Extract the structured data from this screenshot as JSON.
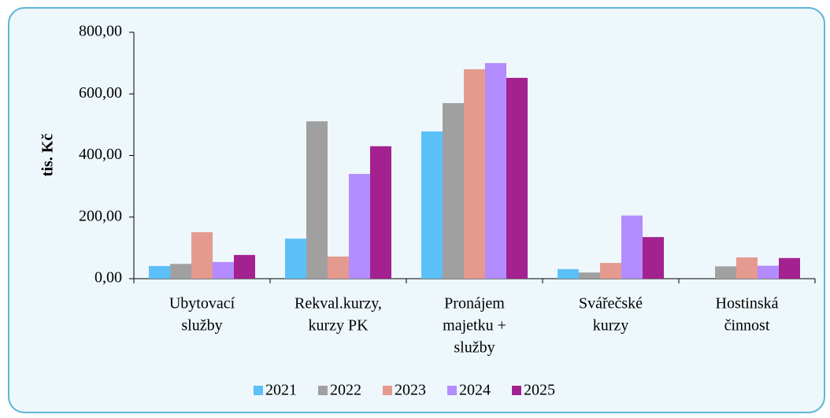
{
  "chart_data": {
    "type": "bar",
    "y_label": "tis. Kč",
    "categories": [
      [
        "Ubytovací",
        "služby"
      ],
      [
        "Rekval.kurzy,",
        "kurzy PK"
      ],
      [
        "Pronájem",
        "majetku +",
        "služby"
      ],
      [
        "Svářečské",
        "kurzy"
      ],
      [
        "Hostinská",
        "činnost"
      ]
    ],
    "series": [
      {
        "name": "2021",
        "color": "#5bc0f8",
        "values": [
          41,
          130,
          478,
          31,
          0
        ]
      },
      {
        "name": "2022",
        "color": "#a0a0a0",
        "values": [
          48,
          511,
          570,
          20,
          40
        ]
      },
      {
        "name": "2023",
        "color": "#e59a90",
        "values": [
          151,
          72,
          680,
          51,
          69
        ]
      },
      {
        "name": "2024",
        "color": "#b38cff",
        "values": [
          54,
          340,
          700,
          205,
          42
        ]
      },
      {
        "name": "2025",
        "color": "#a3228f",
        "values": [
          77,
          430,
          652,
          135,
          67
        ]
      }
    ],
    "ylim": [
      0,
      800
    ],
    "yticks": [
      {
        "value": 0,
        "label": "0,00"
      },
      {
        "value": 200,
        "label": "200,00"
      },
      {
        "value": 400,
        "label": "400,00"
      },
      {
        "value": 600,
        "label": "600,00"
      },
      {
        "value": 800,
        "label": "800,00"
      }
    ],
    "legend": "bottom"
  }
}
